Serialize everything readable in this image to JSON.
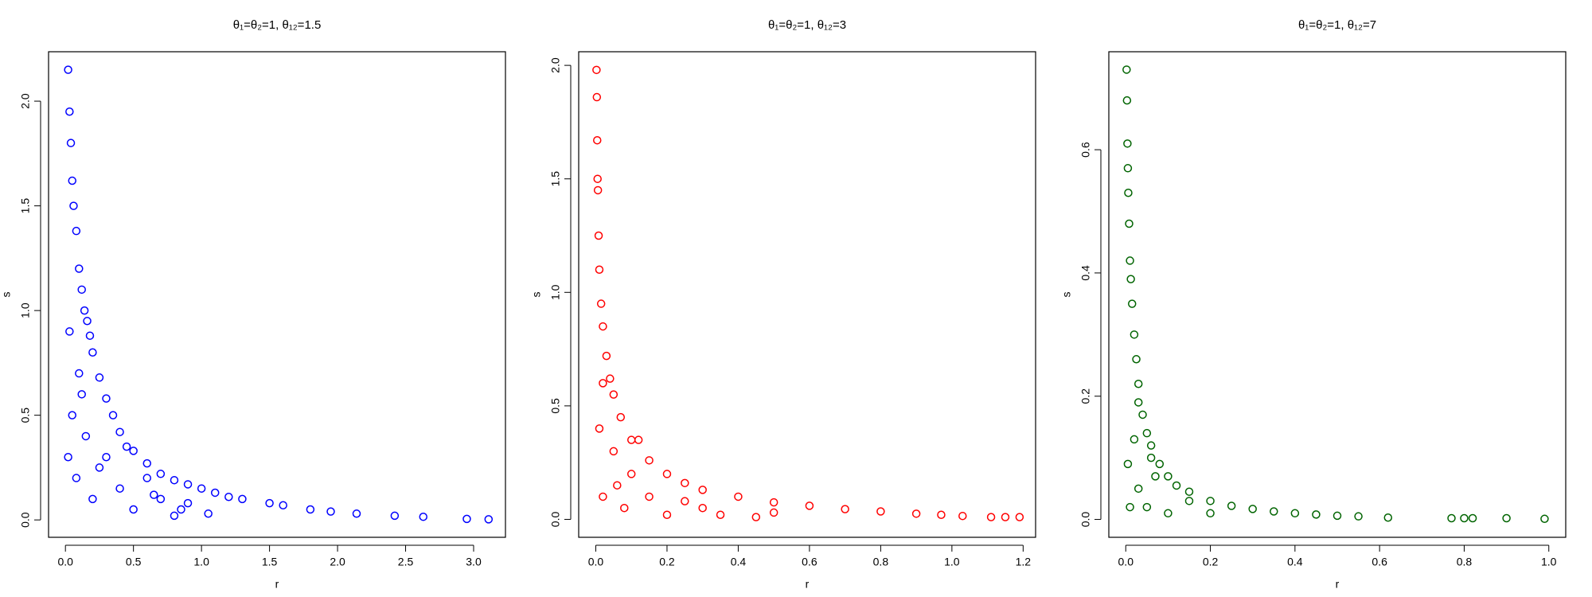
{
  "chart_data": [
    {
      "type": "scatter",
      "title": "θ₁=θ₂=1, θ₁₂=1.5",
      "x_label": "r",
      "y_label": "s",
      "color": "#0000ff",
      "xlim": [
        -0.124,
        3.234
      ],
      "ylim": [
        -0.083,
        2.236
      ],
      "xticks": [
        {
          "value": 0,
          "label": "0.0"
        },
        0.5,
        {
          "value": 1,
          "label": "1.0"
        },
        1.5,
        {
          "value": 2,
          "label": "2.0"
        },
        2.5,
        {
          "value": 3,
          "label": "3.0"
        }
      ],
      "yticks": [
        {
          "value": 0,
          "label": "0.0"
        },
        0.5,
        {
          "value": 1,
          "label": "1.0"
        },
        1.5,
        {
          "value": 2,
          "label": "2.0"
        }
      ],
      "x": [
        0.02,
        0.03,
        0.04,
        0.05,
        0.06,
        0.08,
        0.1,
        0.12,
        0.14,
        0.16,
        0.18,
        0.2,
        0.25,
        0.3,
        0.35,
        0.4,
        0.5,
        0.6,
        0.7,
        0.8,
        0.9,
        1.0,
        1.1,
        1.2,
        1.3,
        1.5,
        1.6,
        1.8,
        1.95,
        2.14,
        2.42,
        2.63,
        2.95,
        3.11,
        0.02,
        0.05,
        0.08,
        0.1,
        0.15,
        0.2,
        0.3,
        0.4,
        0.5,
        0.6,
        0.7,
        0.8,
        0.9,
        0.03,
        0.12,
        0.25,
        0.45,
        0.65,
        0.85,
        1.05
      ],
      "values": [
        2.15,
        1.95,
        1.8,
        1.62,
        1.5,
        1.38,
        1.2,
        1.1,
        1.0,
        0.95,
        0.88,
        0.8,
        0.68,
        0.58,
        0.5,
        0.42,
        0.33,
        0.27,
        0.22,
        0.19,
        0.17,
        0.15,
        0.13,
        0.11,
        0.1,
        0.08,
        0.07,
        0.05,
        0.04,
        0.03,
        0.02,
        0.015,
        0.005,
        0.003,
        0.3,
        0.5,
        0.2,
        0.7,
        0.4,
        0.1,
        0.3,
        0.15,
        0.05,
        0.2,
        0.1,
        0.02,
        0.08,
        0.9,
        0.6,
        0.25,
        0.35,
        0.12,
        0.05,
        0.03
      ]
    },
    {
      "type": "scatter",
      "title": "θ₁=θ₂=1, θ₁₂=3",
      "x_label": "r",
      "y_label": "s",
      "color": "#ff0000",
      "xlim": [
        -0.048,
        1.235
      ],
      "ylim": [
        -0.079,
        2.06
      ],
      "xticks": [
        {
          "value": 0,
          "label": "0.0"
        },
        0.2,
        0.4,
        0.6,
        0.8,
        {
          "value": 1,
          "label": "1.0"
        },
        1.2
      ],
      "yticks": [
        {
          "value": 0,
          "label": "0.0"
        },
        0.5,
        {
          "value": 1,
          "label": "1.0"
        },
        1.5,
        {
          "value": 2,
          "label": "2.0"
        }
      ],
      "x": [
        0.002,
        0.003,
        0.004,
        0.005,
        0.006,
        0.008,
        0.01,
        0.015,
        0.02,
        0.03,
        0.04,
        0.05,
        0.07,
        0.1,
        0.15,
        0.2,
        0.25,
        0.3,
        0.4,
        0.5,
        0.6,
        0.7,
        0.8,
        0.9,
        0.97,
        1.03,
        1.11,
        1.15,
        1.19,
        0.01,
        0.02,
        0.05,
        0.08,
        0.1,
        0.15,
        0.2,
        0.3,
        0.35,
        0.45,
        0.5,
        0.02,
        0.06,
        0.12,
        0.25
      ],
      "values": [
        1.98,
        1.86,
        1.67,
        1.5,
        1.45,
        1.25,
        1.1,
        0.95,
        0.85,
        0.72,
        0.62,
        0.55,
        0.45,
        0.35,
        0.26,
        0.2,
        0.16,
        0.13,
        0.1,
        0.075,
        0.06,
        0.045,
        0.035,
        0.025,
        0.02,
        0.015,
        0.01,
        0.01,
        0.01,
        0.4,
        0.1,
        0.3,
        0.05,
        0.2,
        0.1,
        0.02,
        0.05,
        0.02,
        0.01,
        0.03,
        0.6,
        0.15,
        0.35,
        0.08
      ]
    },
    {
      "type": "scatter",
      "title": "θ₁=θ₂=1, θ₁₂=7",
      "x_label": "r",
      "y_label": "s",
      "color": "#006400",
      "xlim": [
        -0.04,
        1.04
      ],
      "ylim": [
        -0.029,
        0.759
      ],
      "xticks": [
        {
          "value": 0,
          "label": "0.0"
        },
        0.2,
        0.4,
        0.6,
        0.8,
        {
          "value": 1,
          "label": "1.0"
        }
      ],
      "yticks": [
        {
          "value": 0,
          "label": "0.0"
        },
        0.2,
        0.4,
        0.6
      ],
      "x": [
        0.002,
        0.003,
        0.004,
        0.005,
        0.006,
        0.008,
        0.01,
        0.012,
        0.015,
        0.02,
        0.025,
        0.03,
        0.04,
        0.05,
        0.06,
        0.08,
        0.1,
        0.12,
        0.15,
        0.2,
        0.25,
        0.3,
        0.35,
        0.4,
        0.45,
        0.5,
        0.55,
        0.62,
        0.77,
        0.8,
        0.82,
        0.9,
        0.99,
        0.005,
        0.01,
        0.02,
        0.03,
        0.05,
        0.07,
        0.1,
        0.15,
        0.2,
        0.03,
        0.06
      ],
      "values": [
        0.73,
        0.68,
        0.61,
        0.57,
        0.53,
        0.48,
        0.42,
        0.39,
        0.35,
        0.3,
        0.26,
        0.22,
        0.17,
        0.14,
        0.12,
        0.09,
        0.07,
        0.055,
        0.045,
        0.03,
        0.022,
        0.017,
        0.013,
        0.01,
        0.008,
        0.006,
        0.005,
        0.003,
        0.002,
        0.002,
        0.002,
        0.002,
        0.001,
        0.09,
        0.02,
        0.13,
        0.05,
        0.02,
        0.07,
        0.01,
        0.03,
        0.01,
        0.19,
        0.1
      ]
    }
  ]
}
